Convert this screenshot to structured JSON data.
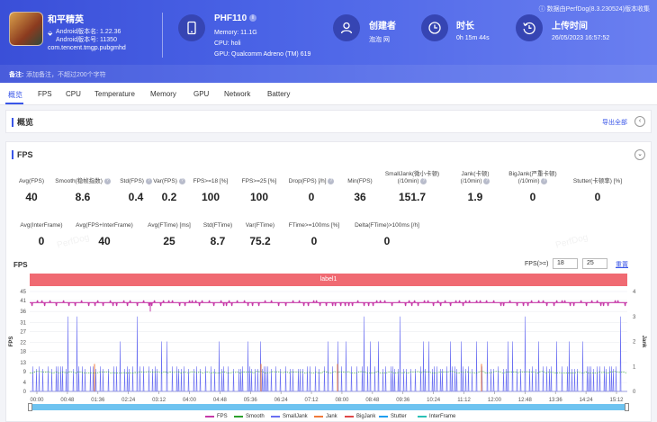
{
  "header": {
    "note": "ⓘ 数据由PerfDog(8.3.230524)版本收集",
    "game_name": "和平精英",
    "android_ver": "Android版本名: 1.22.36",
    "android_code": "Android版本号: 11350",
    "package": "com.tencent.tmgp.pubgmhd",
    "device_name": "PHF110",
    "device_info_badge": "i",
    "memory": "Memory: 11.1G",
    "cpu": "CPU: holi",
    "gpu": "GPU: Qualcomm Adreno (TM) 619",
    "creator_title": "创建者",
    "creator_value": "泡泡 网",
    "duration_title": "时长",
    "duration_value": "0h 15m 44s",
    "upload_title": "上传时间",
    "upload_value": "26/05/2023 16:57:52",
    "remark_label": "备注:",
    "remark_placeholder": "添加备注，不超过200个字符"
  },
  "tabs": [
    "概览",
    "FPS",
    "CPU",
    "Temperature",
    "Memory",
    "GPU",
    "Network",
    "Battery"
  ],
  "overview": {
    "title": "概览",
    "export": "导出全部"
  },
  "fps_panel": {
    "title": "FPS",
    "row1": [
      {
        "label": "Avg(FPS)",
        "q": false,
        "value": "40"
      },
      {
        "label": "Smooth(稳帧指数)",
        "q": true,
        "value": "8.6"
      },
      {
        "label": "Std(FPS)",
        "q": true,
        "value": "0.4"
      },
      {
        "label": "Var(FPS)",
        "q": true,
        "value": "0.2"
      },
      {
        "label": "FPS>=18 [%]",
        "q": false,
        "value": "100"
      },
      {
        "label": "FPS>=25 [%]",
        "q": false,
        "value": "100"
      },
      {
        "label": "Drop(FPS) [/h]",
        "q": true,
        "value": "0"
      },
      {
        "label": "Min(FPS)",
        "q": false,
        "value": "36"
      },
      {
        "label": "SmallJank(微小卡顿)\n(/10min)",
        "q": true,
        "value": "151.7"
      },
      {
        "label": "Jank(卡顿)\n(/10min)",
        "q": true,
        "value": "1.9"
      },
      {
        "label": "BigJank(严重卡顿)\n(/10min)",
        "q": true,
        "value": "0"
      },
      {
        "label": "Stutter(卡顿率) [%]",
        "q": false,
        "value": "0"
      }
    ],
    "row2": [
      {
        "label": "Avg(InterFrame)",
        "q": false,
        "value": "0"
      },
      {
        "label": "Avg(FPS+InterFrame)",
        "q": false,
        "value": "40"
      },
      {
        "label": "Avg(FTime) [ms]",
        "q": false,
        "value": "25"
      },
      {
        "label": "Std(FTime)",
        "q": false,
        "value": "8.7"
      },
      {
        "label": "Var(FTime)",
        "q": false,
        "value": "75.2"
      },
      {
        "label": "FTime>=100ms [%]",
        "q": false,
        "value": "0"
      },
      {
        "label": "Delta(FTime)>100ms [/h]",
        "q": false,
        "value": "0"
      }
    ],
    "watermark": "PerfDog"
  },
  "chart_controls": {
    "fps_label": "FPS",
    "threshold_label": "FPS(>=)",
    "threshold1": "18",
    "threshold2": "25",
    "reset": "重置",
    "label_bar": "label1"
  },
  "chart_data": {
    "type": "line",
    "ylabel": "FPS",
    "y2label": "Jank",
    "ylim": [
      0,
      45
    ],
    "y2lim": [
      0,
      4
    ],
    "yticks": [
      0,
      4,
      9,
      13,
      18,
      22,
      27,
      31,
      36,
      41,
      45
    ],
    "y2ticks": [
      0,
      1,
      2,
      3,
      4
    ],
    "xticks": [
      "00:00",
      "00:48",
      "01:36",
      "02:24",
      "03:12",
      "04:00",
      "04:48",
      "05:36",
      "06:24",
      "07:12",
      "08:00",
      "08:48",
      "09:36",
      "10:24",
      "11:12",
      "12:00",
      "12:48",
      "13:36",
      "14:24",
      "15:12"
    ],
    "duration_seconds": 944,
    "fps_baseline": 40,
    "smooth_baseline": 8.6,
    "colors": {
      "FPS": "#c639a8",
      "Smooth": "#2ca02c",
      "SmallJank": "#6a6ff2",
      "Jank": "#f07a3a",
      "BigJank": "#e04848",
      "Stutter": "#1f9ef0",
      "InterFrame": "#29c0b6"
    },
    "series": [
      {
        "name": "FPS"
      },
      {
        "name": "Smooth"
      },
      {
        "name": "SmallJank"
      },
      {
        "name": "Jank"
      },
      {
        "name": "BigJank"
      },
      {
        "name": "Stutter"
      },
      {
        "name": "InterFrame"
      }
    ]
  }
}
